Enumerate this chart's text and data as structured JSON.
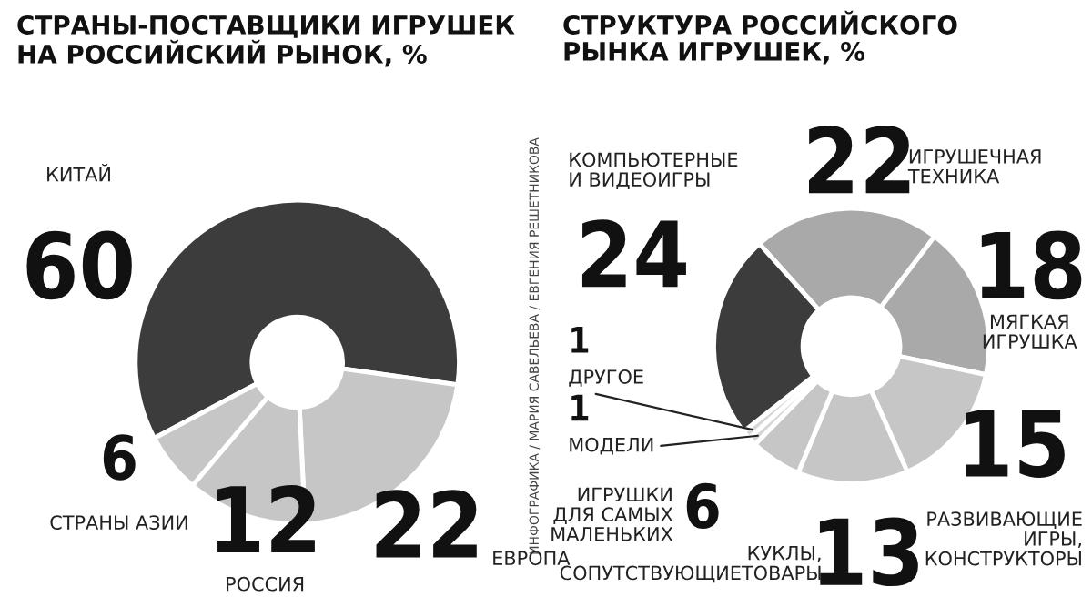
{
  "chart_data": [
    {
      "type": "donut",
      "title": "СТРАНЫ-ПОСТАВЩИКИ ИГРУШЕК\nНА РОССИЙСКИЙ РЫНОК, %",
      "categories": [
        "КИТАЙ",
        "ЕВРОПА",
        "РОССИЯ",
        "СТРАНЫ АЗИИ"
      ],
      "values": [
        60,
        22,
        12,
        6
      ],
      "colors": [
        "#3c3c3c",
        "#c6c6c6",
        "#c6c6c6",
        "#c6c6c6"
      ],
      "data_labels": true,
      "annotations": [
        "ИНФОГРАФИКА / МАРИЯ САВЕЛЬЕВА / ЕВГЕНИЯ РЕШЕТНИКОВА"
      ]
    },
    {
      "type": "donut",
      "title": "СТРУКТУРА РОССИЙСКОГО\nРЫНКА ИГРУШЕК, %",
      "categories": [
        "ИГРУШЕЧНАЯ\nТЕХНИКА",
        "МЯГКАЯ\nИГРУШКА",
        "РАЗВИВАЮЩИЕ\nИГРЫ,\nКОНСТРУКТОРЫ",
        "КУКЛЫ,\nСОПУТСТВУЮЩИЕТОВАРЫ",
        "ИГРУШКИ\nДЛЯ САМЫХ\nМАЛЕНЬКИХ",
        "МОДЕЛИ",
        "ДРУГОЕ",
        "КОМПЬЮТЕРНЫЕ\nИ ВИДЕОИГРЫ"
      ],
      "values": [
        22,
        18,
        15,
        13,
        6,
        1,
        1,
        24
      ],
      "colors": [
        "#a9a9a9",
        "#a9a9a9",
        "#c6c6c6",
        "#c6c6c6",
        "#c6c6c6",
        "#d6d6d6",
        "#d6d6d6",
        "#3c3c3c"
      ],
      "data_labels": true
    }
  ]
}
